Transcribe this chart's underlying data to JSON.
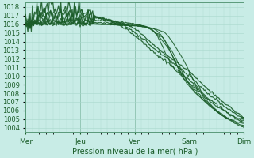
{
  "title": "Pression niveau de la mer( hPa )",
  "ylim": [
    1003.5,
    1018.5
  ],
  "yticks": [
    1004,
    1005,
    1006,
    1007,
    1008,
    1009,
    1010,
    1011,
    1012,
    1013,
    1014,
    1015,
    1016,
    1017,
    1018
  ],
  "xlim": [
    0,
    96
  ],
  "xticks": [
    0,
    24,
    48,
    72,
    96
  ],
  "xlabels": [
    "Mer",
    "Jeu",
    "Ven",
    "Sam",
    "Dim"
  ],
  "bg_color": "#c8ece6",
  "grid_color": "#a8d8cc",
  "line_color": "#1a5c28",
  "figsize": [
    3.2,
    2.0
  ],
  "dpi": 100
}
